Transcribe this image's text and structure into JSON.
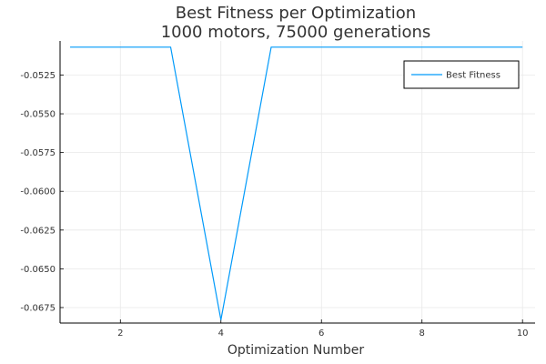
{
  "chart_data": {
    "type": "line",
    "title": "Best Fitness per Optimization",
    "subtitle": "1000 motors, 75000 generations",
    "xlabel": "Optimization Number",
    "ylabel": "",
    "xlim": [
      0.8,
      10.25
    ],
    "ylim": [
      -0.0685,
      -0.0503
    ],
    "grid": true,
    "legend_position": "top-right",
    "x_ticks": [
      2,
      4,
      6,
      8,
      10
    ],
    "x_tick_labels": [
      "2",
      "4",
      "6",
      "8",
      "10"
    ],
    "y_ticks": [
      -0.0525,
      -0.055,
      -0.0575,
      -0.06,
      -0.0625,
      -0.065,
      -0.0675
    ],
    "y_tick_labels": [
      "-0.0525",
      "-0.0550",
      "-0.0575",
      "-0.0600",
      "-0.0625",
      "-0.0650",
      "-0.0675"
    ],
    "series": [
      {
        "name": "Best Fitness",
        "color": "#009AFA",
        "x": [
          1,
          2,
          3,
          4,
          5,
          6,
          7,
          8,
          9,
          10
        ],
        "values": [
          -0.0507,
          -0.0507,
          -0.0507,
          -0.0683,
          -0.0507,
          -0.0507,
          -0.0507,
          -0.0507,
          -0.0507,
          -0.0507
        ]
      }
    ]
  }
}
